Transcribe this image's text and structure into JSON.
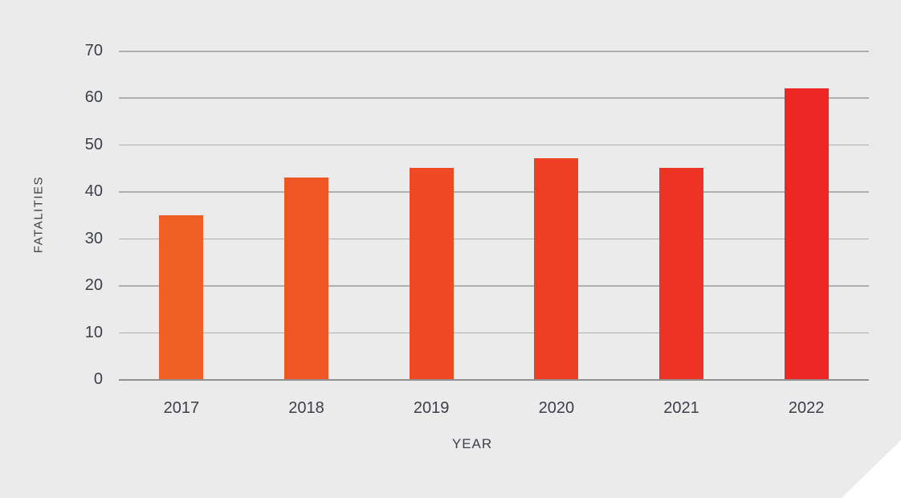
{
  "chart_data": {
    "type": "bar",
    "title": "",
    "categories": [
      "2017",
      "2018",
      "2019",
      "2020",
      "2021",
      "2022"
    ],
    "values": [
      35,
      43,
      45,
      47,
      45,
      62
    ],
    "bar_colors": [
      "#F06024",
      "#F05524",
      "#EF4A24",
      "#EE3F24",
      "#ED3324",
      "#EC2724"
    ],
    "xlabel": "YEAR",
    "ylabel": "FATALITIES",
    "ylim": [
      0,
      70
    ],
    "yticks": [
      0,
      10,
      20,
      30,
      40,
      50,
      60,
      70
    ],
    "grid": "horizontal gridlines on",
    "legend": "none"
  },
  "colors": {
    "background": "#EBEBEB",
    "gridline": "#AFAFAF",
    "zero_line": "#8F8F8F",
    "text": "#3B3F48",
    "corner_cut": "#FFFFFF"
  }
}
